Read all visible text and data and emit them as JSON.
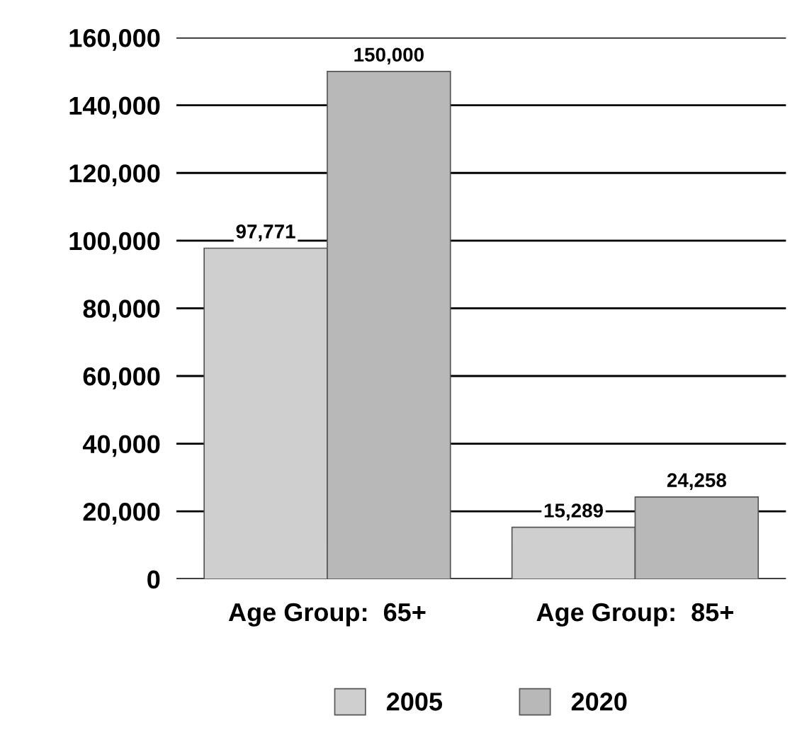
{
  "chart_data": {
    "type": "bar",
    "categories": [
      "Age Group:  65+",
      "Age Group:  85+"
    ],
    "series": [
      {
        "name": "2005",
        "color": "#cfcfcf",
        "values": [
          97771,
          15289
        ],
        "value_labels": [
          "97,771",
          "15,289"
        ]
      },
      {
        "name": "2020",
        "color": "#b8b8b8",
        "values": [
          150000,
          24258
        ],
        "value_labels": [
          "150,000",
          "24,258"
        ]
      }
    ],
    "ylim": [
      0,
      160000
    ],
    "yticks": [
      0,
      {
        "value": 20000,
        "label": "20,000"
      },
      {
        "value": 40000,
        "label": "40,000"
      },
      {
        "value": 60000,
        "label": "60,000"
      },
      {
        "value": 80000,
        "label": "80,000"
      },
      {
        "value": 100000,
        "label": "100,000"
      },
      {
        "value": 120000,
        "label": "120,000"
      },
      {
        "value": 140000,
        "label": "140,000"
      },
      {
        "value": 160000,
        "label": "160,000"
      }
    ],
    "grid": "y",
    "legend": "bottom"
  }
}
